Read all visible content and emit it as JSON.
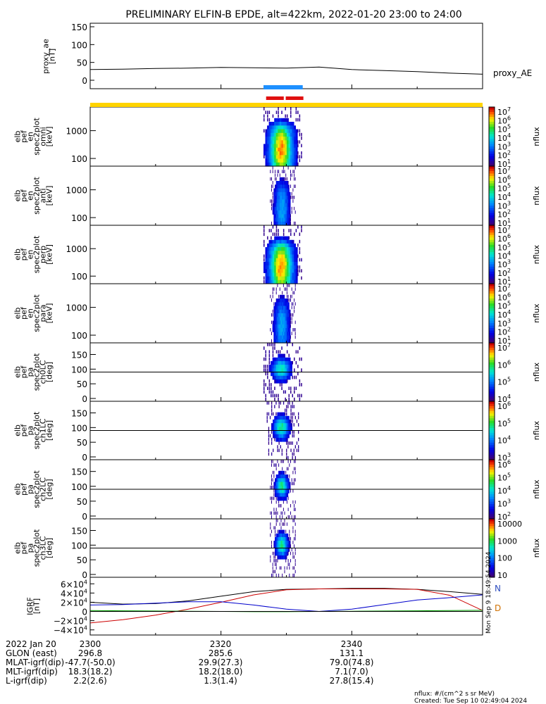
{
  "title": "PRELIMINARY ELFIN-B EPDE, alt=422km, 2022-01-20 23:00 to 24:00",
  "colors": {
    "line": "#000000",
    "blue_bar": "#1e90ff",
    "red_bar": "#e01010",
    "yellow_bar": "#ffd400",
    "bx": "#0000cc",
    "by": "#00a000",
    "bz": "#cc0000",
    "btot": "#000000"
  },
  "chart_data": [
    {
      "type": "line",
      "name": "proxy_ae",
      "ylabel_lines": [
        "proxy_ae",
        "[nT]"
      ],
      "legend": "proxy_AE",
      "ylim": [
        0,
        150
      ],
      "yticks": [
        "0",
        "50",
        "100",
        "150"
      ],
      "x_minutes": [
        0,
        5,
        10,
        15,
        20,
        25,
        30,
        35,
        40,
        45,
        50,
        55,
        60
      ],
      "values": [
        30,
        31,
        33,
        34,
        36,
        35,
        34,
        37,
        30,
        27,
        24,
        20,
        17
      ]
    },
    {
      "type": "heatmap",
      "name": "elb_pef_en_spec2plot_omni",
      "ylabel_lines": [
        "elb",
        "pef",
        "en",
        "spec2plot",
        "omni",
        "[keV]"
      ],
      "yscale": "log",
      "yticks": [
        "100",
        "1000"
      ],
      "zlabel": "nflux",
      "cbar_ticks": [
        "10^7",
        "10^6",
        "10^5",
        "10^4",
        "10^3",
        "10^2",
        "10^1"
      ],
      "active_range_minutes": [
        26.5,
        32.5
      ]
    },
    {
      "type": "heatmap",
      "name": "elb_pef_en_spec2plot_anti",
      "ylabel_lines": [
        "elb",
        "pef",
        "en",
        "spec2plot",
        "anti",
        "[keV]"
      ],
      "yscale": "log",
      "yticks": [
        "100",
        "1000"
      ],
      "zlabel": "nflux",
      "cbar_ticks": [
        "10^7",
        "10^6",
        "10^5",
        "10^4",
        "10^3",
        "10^2",
        "10^1"
      ],
      "active_range_minutes": [
        27.5,
        31.5
      ]
    },
    {
      "type": "heatmap",
      "name": "elb_pef_en_spec2plot_perp",
      "ylabel_lines": [
        "elb",
        "pef",
        "en",
        "spec2plot",
        "perp",
        "[keV]"
      ],
      "yscale": "log",
      "yticks": [
        "100",
        "1000"
      ],
      "zlabel": "nflux",
      "cbar_ticks": [
        "10^7",
        "10^6",
        "10^5",
        "10^4",
        "10^3",
        "10^2",
        "10^1"
      ],
      "active_range_minutes": [
        26.5,
        32.5
      ]
    },
    {
      "type": "heatmap",
      "name": "elb_pef_en_spec2plot_para",
      "ylabel_lines": [
        "elb",
        "pef",
        "en",
        "spec2plot",
        "para",
        "[keV]"
      ],
      "yscale": "log",
      "yticks": [
        "100",
        "1000"
      ],
      "zlabel": "nflux",
      "cbar_ticks": [
        "10^7",
        "10^6",
        "10^5",
        "10^4",
        "10^3",
        "10^2",
        "10^1"
      ],
      "active_range_minutes": [
        27.5,
        31.5
      ]
    },
    {
      "type": "heatmap",
      "name": "elb_pef_pa_spec2plot_ch0LC",
      "ylabel_lines": [
        "elb",
        "pef",
        "pa",
        "spec2plot",
        "ch0LC",
        "[deg]"
      ],
      "ylim": [
        0,
        180
      ],
      "yticks": [
        "0",
        "50",
        "100",
        "150"
      ],
      "zlabel": "nflux",
      "cbar_ticks": [
        "10^7",
        "10^6",
        "10^5",
        "10^4"
      ],
      "active_range_minutes": [
        26.5,
        32.5
      ]
    },
    {
      "type": "heatmap",
      "name": "elb_pef_pa_spec2plot_ch1LC",
      "ylabel_lines": [
        "elb",
        "pef",
        "pa",
        "spec2plot",
        "ch1LC",
        "[deg]"
      ],
      "ylim": [
        0,
        180
      ],
      "yticks": [
        "0",
        "50",
        "100",
        "150"
      ],
      "zlabel": "nflux",
      "cbar_ticks": [
        "10^6",
        "10^5",
        "10^4",
        "10^3"
      ],
      "active_range_minutes": [
        27,
        32
      ]
    },
    {
      "type": "heatmap",
      "name": "elb_pef_pa_spec2plot_ch2LC",
      "ylabel_lines": [
        "elb",
        "pef",
        "pa",
        "spec2plot",
        "ch2LC",
        "[deg]"
      ],
      "ylim": [
        0,
        180
      ],
      "yticks": [
        "0",
        "50",
        "100",
        "150"
      ],
      "zlabel": "nflux",
      "cbar_ticks": [
        "10^6",
        "10^5",
        "10^4",
        "10^3",
        "10^2"
      ],
      "active_range_minutes": [
        27.5,
        31.5
      ]
    },
    {
      "type": "heatmap",
      "name": "elb_pef_pa_spec2plot_ch3LC",
      "ylabel_lines": [
        "elb",
        "pef",
        "pa",
        "spec2plot",
        "ch3LC",
        "[deg]"
      ],
      "ylim": [
        0,
        180
      ],
      "yticks": [
        "0",
        "50",
        "100",
        "150"
      ],
      "zlabel": "nflux",
      "cbar_ticks": [
        "10000",
        "1000",
        "100",
        "10"
      ],
      "active_range_minutes": [
        27.5,
        31.5
      ]
    },
    {
      "type": "line",
      "name": "IGRF",
      "ylabel_lines": [
        "IGRF",
        "[nT]"
      ],
      "ylim": [
        -45000,
        65000
      ],
      "yticks": [
        "6×10^4",
        "4×10^4",
        "2×10^4",
        "0",
        "−2×10^4",
        "−4×10^4"
      ],
      "legend": [
        "N",
        "D"
      ],
      "x_minutes": [
        0,
        5,
        10,
        15,
        20,
        25,
        30,
        35,
        40,
        45,
        50,
        55,
        60
      ],
      "series": [
        {
          "color": "#000000",
          "values": [
            20000,
            16000,
            17000,
            23000,
            33000,
            43000,
            48000,
            49000,
            50000,
            50000,
            48000,
            43000,
            37000
          ]
        },
        {
          "color": "#cc0000",
          "values": [
            -25000,
            -18000,
            -8000,
            5000,
            20000,
            36000,
            47000,
            49000,
            49000,
            49000,
            48000,
            35000,
            2000
          ]
        },
        {
          "color": "#0000cc",
          "values": [
            14000,
            15000,
            18000,
            21000,
            21000,
            14000,
            5000,
            0,
            5000,
            15000,
            25000,
            30000,
            36000
          ]
        },
        {
          "color": "#00a000",
          "values": [
            2000,
            1500,
            1000,
            500,
            0,
            -500,
            -500,
            0,
            500,
            1000,
            1500,
            2000,
            2500
          ]
        }
      ]
    }
  ],
  "timestamp_side": "Mon Sep 9 18:49:54 2024",
  "footer": {
    "labels": [
      "2022 Jan 20",
      "GLON (east)",
      "MLAT-igrf(dip)",
      "MLT-igrf(dip)",
      "L-igrf(dip)"
    ],
    "ticks": [
      "2300",
      "2320",
      "2340"
    ],
    "columns": [
      [
        "2300",
        "296.8",
        "-47.7(-50.0)",
        "18.3(18.2)",
        "2.2(2.6)"
      ],
      [
        "2320",
        "285.6",
        "29.9(27.3)",
        "18.2(18.0)",
        "1.3(1.4)"
      ],
      [
        "2340",
        "131.1",
        "79.0(74.8)",
        "7.1(7.0)",
        "27.8(15.4)"
      ]
    ],
    "note1": "nflux: #/(cm^2 s sr MeV)",
    "note2": "Created: Tue Sep 10 02:49:04 2024"
  }
}
